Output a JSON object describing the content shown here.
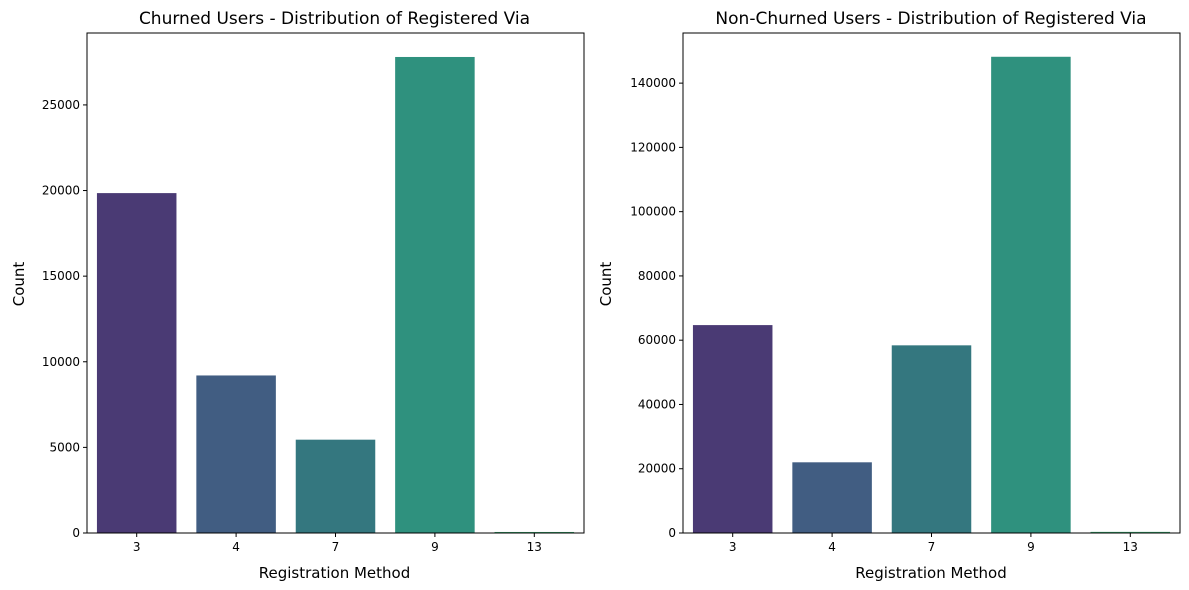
{
  "chart_data": [
    {
      "type": "bar",
      "title": "Churned Users - Distribution of Registered Via",
      "xlabel": "Registration Method",
      "ylabel": "Count",
      "categories": [
        "3",
        "4",
        "7",
        "9",
        "13"
      ],
      "values": [
        19850,
        9200,
        5450,
        27800,
        60
      ],
      "colors": [
        "#4a3a74",
        "#415d82",
        "#34777f",
        "#2f917e",
        "#3aaa70"
      ],
      "ylim": [
        0,
        29200
      ],
      "yticks": [
        0,
        5000,
        10000,
        15000,
        20000,
        25000
      ],
      "grid": false,
      "legend": false
    },
    {
      "type": "bar",
      "title": "Non-Churned Users - Distribution of Registered Via",
      "xlabel": "Registration Method",
      "ylabel": "Count",
      "categories": [
        "3",
        "4",
        "7",
        "9",
        "13"
      ],
      "values": [
        64700,
        22000,
        58400,
        148200,
        350
      ],
      "colors": [
        "#4a3a74",
        "#415d82",
        "#34777f",
        "#2f917e",
        "#3aaa70"
      ],
      "ylim": [
        0,
        155600
      ],
      "yticks": [
        0,
        20000,
        40000,
        60000,
        80000,
        100000,
        120000,
        140000
      ],
      "grid": false,
      "legend": false
    }
  ]
}
